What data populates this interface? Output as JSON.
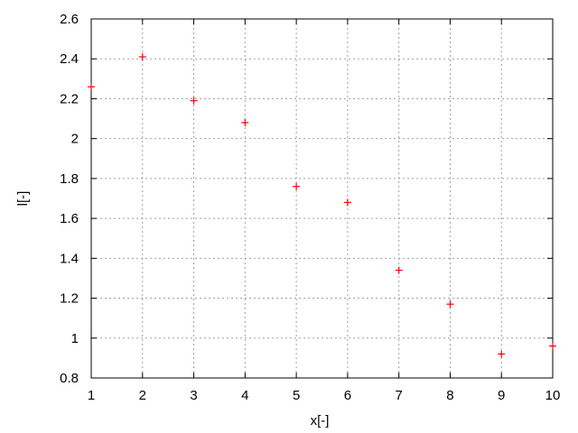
{
  "chart_data": {
    "type": "scatter",
    "title": "",
    "xlabel": "x[-]",
    "ylabel": "l[-]",
    "xlim": [
      1,
      10
    ],
    "ylim": [
      0.8,
      2.6
    ],
    "grid": true,
    "legend": "none",
    "marker": "plus",
    "marker_color": "#ff0000",
    "x_ticks": [
      "1",
      "2",
      "3",
      "4",
      "5",
      "6",
      "7",
      "8",
      "9",
      "10"
    ],
    "y_ticks": [
      "0.8",
      "1",
      "1.2",
      "1.4",
      "1.6",
      "1.8",
      "2",
      "2.2",
      "2.4",
      "2.6"
    ],
    "series": [
      {
        "x": [
          1,
          2,
          3,
          4,
          5,
          6,
          7,
          8,
          9,
          10
        ],
        "y": [
          2.26,
          2.41,
          2.19,
          2.08,
          1.76,
          1.68,
          1.34,
          1.17,
          0.92,
          0.96
        ]
      }
    ]
  }
}
